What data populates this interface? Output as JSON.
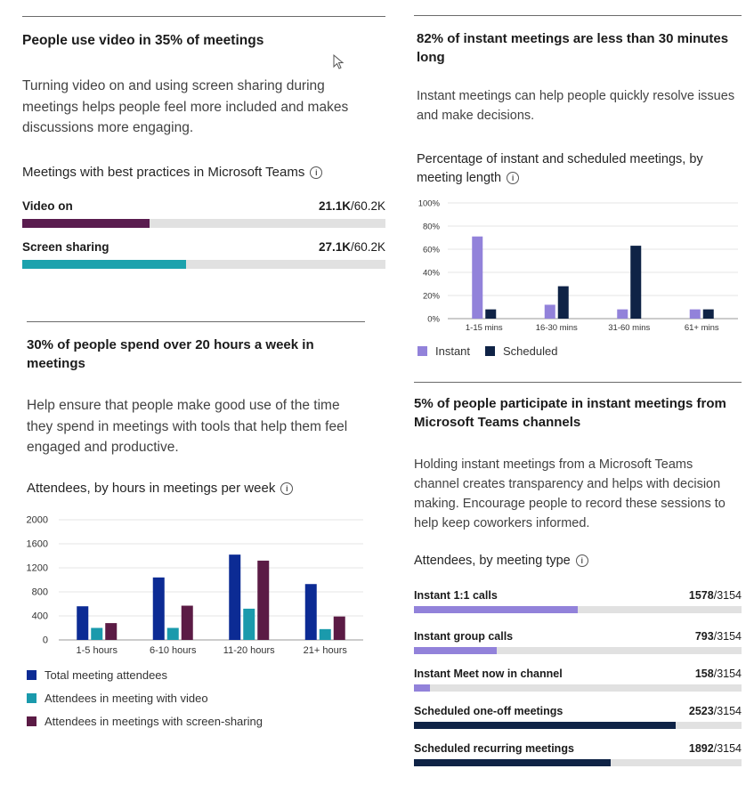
{
  "colors": {
    "video_on": "#5a1c4f",
    "screen_sharing": "#1ca2ad",
    "instant": "#9282da",
    "scheduled": "#0f2346",
    "total": "#0c2b94",
    "video": "#1a9aac",
    "screen": "#5b1b45",
    "track": "#e1e1e1"
  },
  "video_card": {
    "title": "People use video in 35% of meetings",
    "description": "Turning video on and using screen sharing during meetings helps people feel more included and makes discussions more engaging.",
    "subtitle": "Meetings with best practices in Microsoft Teams",
    "info_icon": "info-icon",
    "bars": [
      {
        "label": "Video on",
        "value": "21.1K",
        "total": "/60.2K",
        "fraction": 0.35
      },
      {
        "label": "Screen sharing",
        "value": "27.1K",
        "total": "/60.2K",
        "fraction": 0.45
      }
    ]
  },
  "hours_card": {
    "title": "30% of people spend over 20 hours a week in meetings",
    "description": "Help ensure that people make good use of the time they spend in meetings with tools that help them feel engaged and productive.",
    "subtitle": "Attendees, by hours in meetings per week",
    "legend": [
      "Total meeting attendees",
      "Attendees in meeting with video",
      "Attendees in meetings with screen-sharing"
    ]
  },
  "instant_card": {
    "title": "82% of instant meetings are less than 30 minutes long",
    "description": "Instant meetings can help people quickly resolve issues and make decisions.",
    "subtitle": "Percentage of instant and scheduled meetings, by meeting length",
    "legend": [
      "Instant",
      "Scheduled"
    ]
  },
  "channels_card": {
    "title": "5% of people participate in instant meetings from Microsoft Teams channels",
    "description": "Holding instant meetings from a Microsoft Teams channel creates transparency and helps with decision making. Encourage people to record these sessions to help keep coworkers informed.",
    "subtitle": "Attendees, by meeting type",
    "bars": [
      {
        "label": "Instant 1:1 calls",
        "value": "1578",
        "total": "/3154",
        "fraction": 0.5003,
        "color": "instant"
      },
      {
        "label": "Instant group calls",
        "value": "793",
        "total": "/3154",
        "fraction": 0.2514,
        "color": "instant"
      },
      {
        "label": "Instant Meet now in channel",
        "value": "158",
        "total": "/3154",
        "fraction": 0.0501,
        "color": "instant"
      },
      {
        "label": "Scheduled one-off meetings",
        "value": "2523",
        "total": "/3154",
        "fraction": 0.8,
        "color": "scheduled"
      },
      {
        "label": "Scheduled recurring meetings",
        "value": "1892",
        "total": "/3154",
        "fraction": 0.6,
        "color": "scheduled"
      }
    ]
  },
  "chart_data": [
    {
      "type": "bar",
      "categories": [
        "1-5 hours",
        "6-10 hours",
        "11-20 hours",
        "21+ hours"
      ],
      "series": [
        {
          "name": "Total meeting attendees",
          "values": [
            560,
            1040,
            1420,
            930
          ]
        },
        {
          "name": "Attendees in meeting with video",
          "values": [
            200,
            200,
            520,
            180
          ]
        },
        {
          "name": "Attendees in meetings with screen-sharing",
          "values": [
            280,
            570,
            1320,
            390
          ]
        }
      ],
      "yticks": [
        "0",
        "400",
        "800",
        "1200",
        "1600",
        "2000"
      ],
      "ylim": [
        0,
        2000
      ],
      "grid": true,
      "legend": "bottom"
    },
    {
      "type": "bar",
      "categories": [
        "1-15 mins",
        "16-30 mins",
        "31-60 mins",
        "61+ mins"
      ],
      "series": [
        {
          "name": "Instant",
          "values": [
            71,
            12,
            8,
            8
          ]
        },
        {
          "name": "Scheduled",
          "values": [
            8,
            28,
            63,
            8
          ]
        }
      ],
      "yticks": [
        "0%",
        "20%",
        "40%",
        "60%",
        "80%",
        "100%"
      ],
      "ylim": [
        0,
        100
      ],
      "grid": true,
      "legend": "bottom"
    }
  ]
}
